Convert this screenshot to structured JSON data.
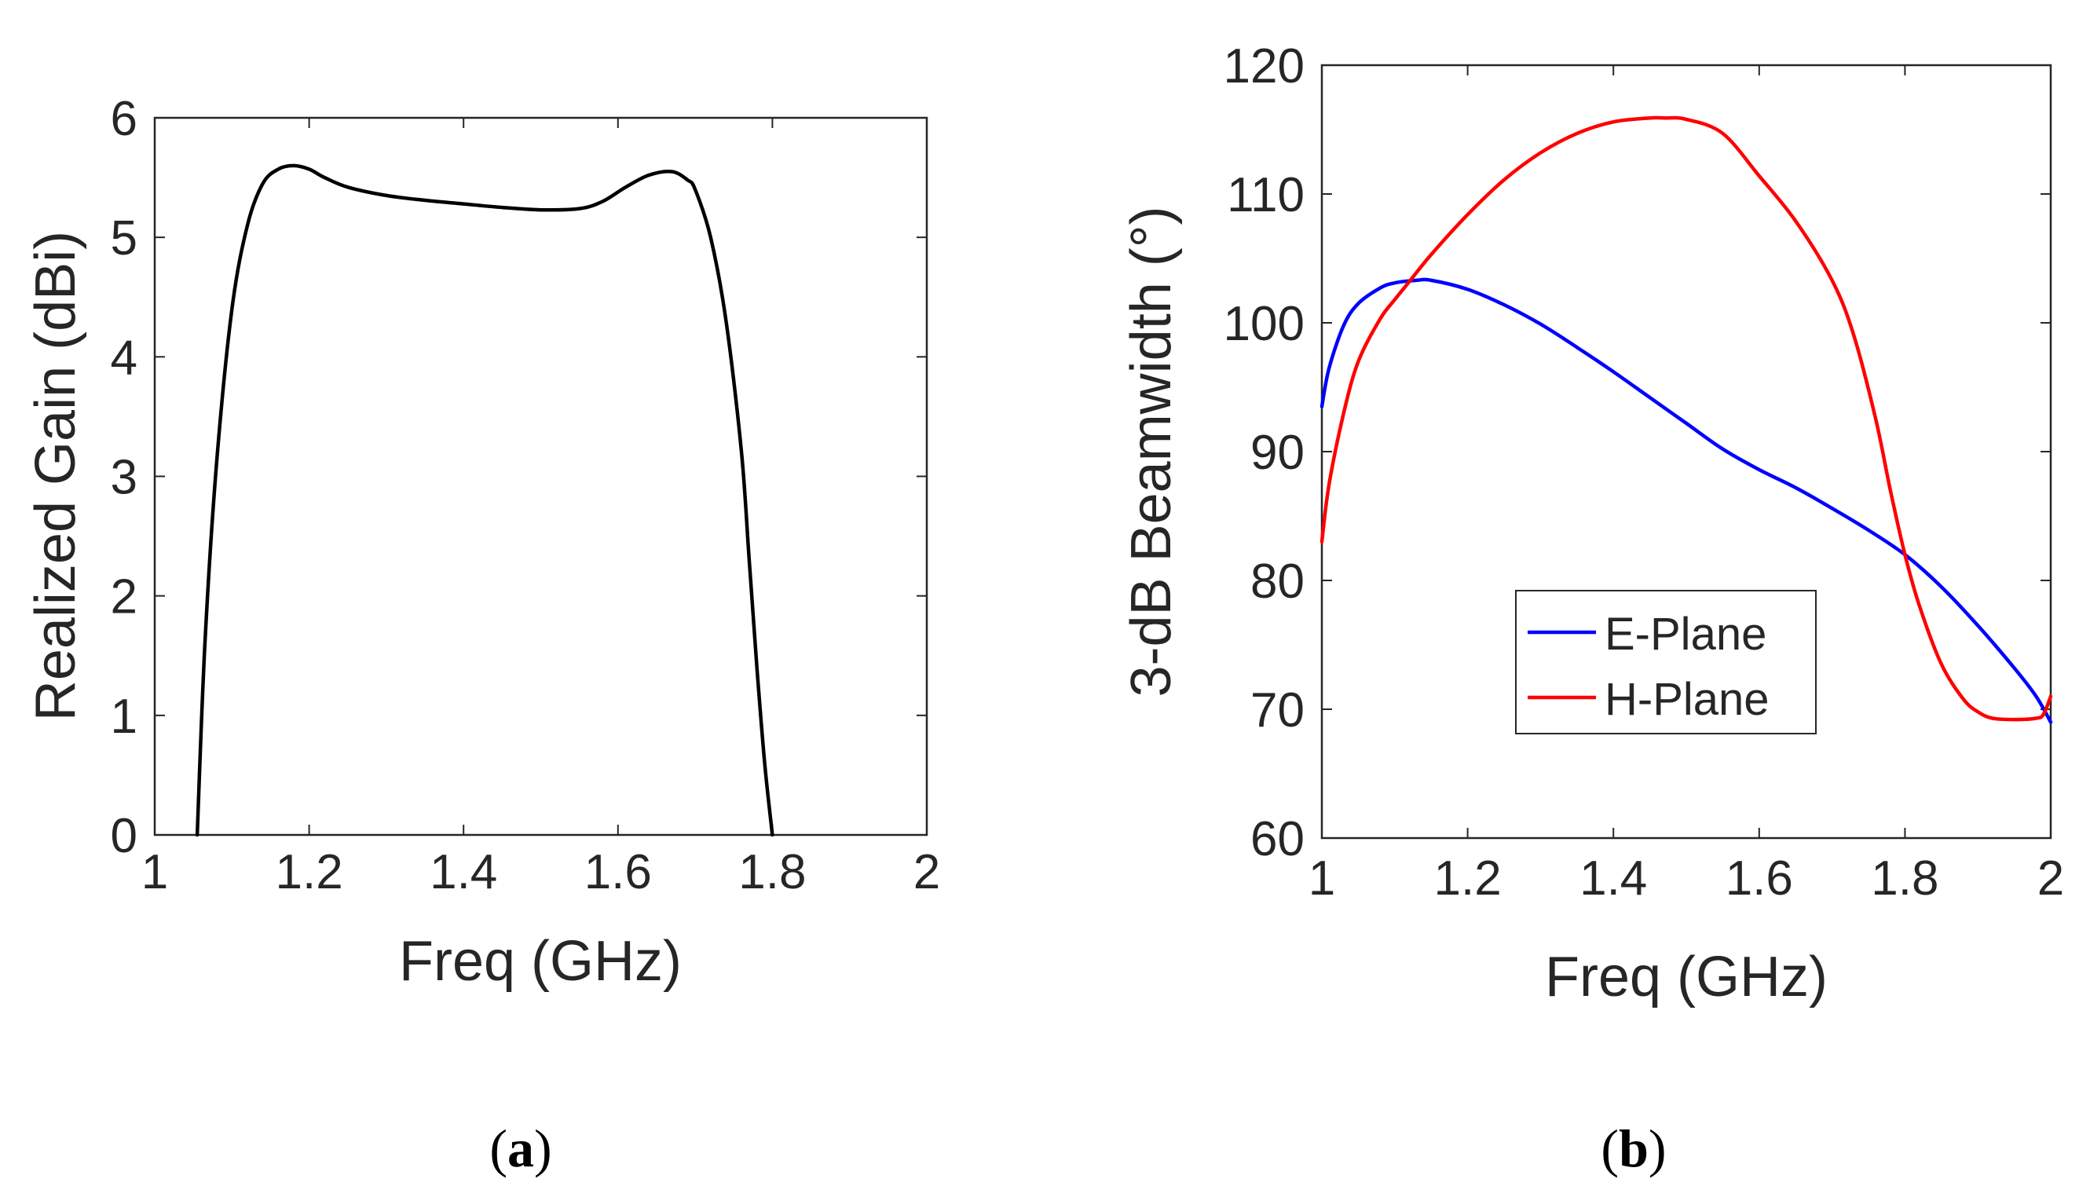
{
  "chart_data": [
    {
      "type": "line",
      "panel_label": "a",
      "title": "",
      "xlabel": "Freq (GHz)",
      "ylabel": "Realized Gain (dBi)",
      "xlim": [
        1,
        2
      ],
      "ylim": [
        0,
        6
      ],
      "xticks": [
        "1",
        "1.2",
        "1.4",
        "1.6",
        "1.8",
        "2"
      ],
      "yticks": [
        "0",
        "1",
        "2",
        "3",
        "4",
        "5",
        "6"
      ],
      "grid": false,
      "legend": null,
      "series": [
        {
          "name": "Realized Gain",
          "color": "#000000",
          "x": [
            1.055,
            1.065,
            1.08,
            1.1,
            1.12,
            1.14,
            1.16,
            1.18,
            1.2,
            1.22,
            1.25,
            1.3,
            1.35,
            1.4,
            1.45,
            1.5,
            1.55,
            1.58,
            1.61,
            1.64,
            1.67,
            1.69,
            1.7,
            1.72,
            1.74,
            1.76,
            1.77,
            1.78,
            1.79,
            1.8
          ],
          "y": [
            0.0,
            1.6,
            3.1,
            4.4,
            5.1,
            5.45,
            5.57,
            5.6,
            5.57,
            5.5,
            5.42,
            5.35,
            5.31,
            5.28,
            5.25,
            5.23,
            5.24,
            5.3,
            5.42,
            5.52,
            5.55,
            5.48,
            5.4,
            5.0,
            4.3,
            3.2,
            2.3,
            1.4,
            0.6,
            0.0
          ]
        }
      ]
    },
    {
      "type": "line",
      "panel_label": "b",
      "title": "",
      "xlabel": "Freq (GHz)",
      "ylabel": "3-dB Beamwidth (°)",
      "xlim": [
        1,
        2
      ],
      "ylim": [
        60,
        120
      ],
      "xticks": [
        "1",
        "1.2",
        "1.4",
        "1.6",
        "1.8",
        "2"
      ],
      "yticks": [
        "60",
        "70",
        "80",
        "90",
        "100",
        "110",
        "120"
      ],
      "grid": false,
      "legend": "center-right",
      "series": [
        {
          "name": "E-Plane",
          "color": "#0000ff",
          "x": [
            1.0,
            1.01,
            1.03,
            1.05,
            1.08,
            1.1,
            1.13,
            1.15,
            1.2,
            1.25,
            1.3,
            1.35,
            1.4,
            1.45,
            1.5,
            1.55,
            1.6,
            1.65,
            1.7,
            1.75,
            1.8,
            1.85,
            1.9,
            1.95,
            1.98,
            2.0
          ],
          "y": [
            93.5,
            96.5,
            99.8,
            101.5,
            102.7,
            103.1,
            103.3,
            103.3,
            102.6,
            101.4,
            99.9,
            98.1,
            96.2,
            94.2,
            92.2,
            90.2,
            88.6,
            87.2,
            85.6,
            83.9,
            82.0,
            79.5,
            76.5,
            73.2,
            71.0,
            69.0
          ]
        },
        {
          "name": "H-Plane",
          "color": "#ff0000",
          "x": [
            1.0,
            1.01,
            1.03,
            1.05,
            1.08,
            1.1,
            1.12,
            1.15,
            1.2,
            1.25,
            1.3,
            1.35,
            1.4,
            1.45,
            1.47,
            1.5,
            1.55,
            1.6,
            1.65,
            1.7,
            1.73,
            1.76,
            1.78,
            1.8,
            1.82,
            1.85,
            1.88,
            1.9,
            1.92,
            1.95,
            1.98,
            1.99,
            2.0
          ],
          "y": [
            83.0,
            87.5,
            93.0,
            97.0,
            100.3,
            101.8,
            103.2,
            105.3,
            108.4,
            111.1,
            113.2,
            114.7,
            115.6,
            115.9,
            115.9,
            115.8,
            114.7,
            111.4,
            107.9,
            103.3,
            99.0,
            92.5,
            87.0,
            82.0,
            78.0,
            73.5,
            70.8,
            69.8,
            69.3,
            69.2,
            69.3,
            69.6,
            71.0
          ]
        }
      ]
    }
  ],
  "captions": {
    "a": "a",
    "b": "b"
  }
}
